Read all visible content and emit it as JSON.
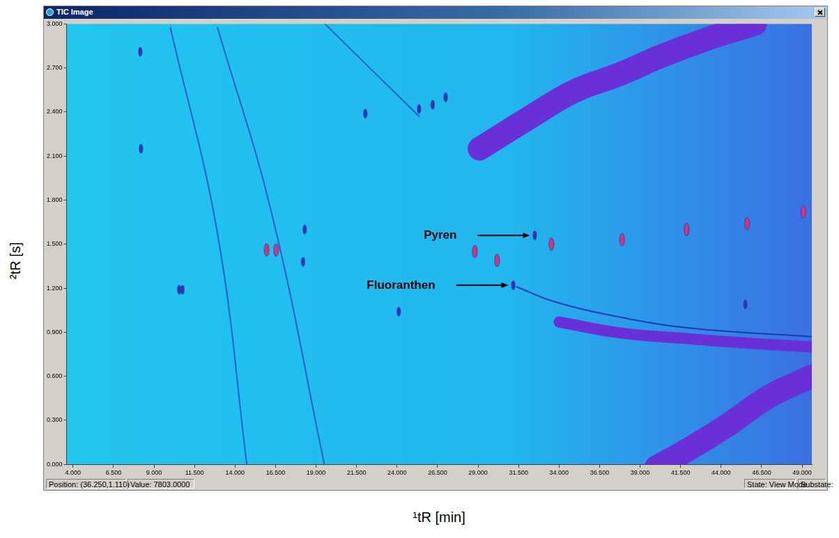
{
  "window": {
    "title": "TIC Image",
    "status": [
      "Position: (36.250,1.110)",
      "Value: 7803.0000",
      "State: View Mode",
      "Substate:"
    ]
  },
  "chart_data": {
    "type": "scatter",
    "x_label": "¹tR [min]",
    "y_label": "²tR [s]",
    "xlim": [
      3.6,
      49.6
    ],
    "xticks": [
      {
        "value": 4,
        "label": "4.000"
      },
      {
        "value": 6.5,
        "label": "6.500"
      },
      {
        "value": 9,
        "label": "9.000"
      },
      {
        "value": 11.5,
        "label": "11.500"
      },
      {
        "value": 14,
        "label": "14.000"
      },
      {
        "value": 16.5,
        "label": "16.500"
      },
      {
        "value": 19,
        "label": "19.000"
      },
      {
        "value": 21.5,
        "label": "21.500"
      },
      {
        "value": 24,
        "label": "24.000"
      },
      {
        "value": 26.5,
        "label": "26.500"
      },
      {
        "value": 29,
        "label": "29.000"
      },
      {
        "value": 31.5,
        "label": "31.500"
      },
      {
        "value": 34,
        "label": "34.000"
      },
      {
        "value": 36.5,
        "label": "36.500"
      },
      {
        "value": 39,
        "label": "39.000"
      },
      {
        "value": 41.5,
        "label": "41.500"
      },
      {
        "value": 44,
        "label": "44.000"
      },
      {
        "value": 46.5,
        "label": "46.500"
      },
      {
        "value": 49,
        "label": "49.000"
      }
    ],
    "ylim": [
      0,
      3
    ],
    "yticks": [
      {
        "value": 0,
        "label": "0.000"
      },
      {
        "value": 0.3,
        "label": "0.300"
      },
      {
        "value": 0.6,
        "label": "0.600"
      },
      {
        "value": 0.9,
        "label": "0.900"
      },
      {
        "value": 1.2,
        "label": "1.200"
      },
      {
        "value": 1.5,
        "label": "1.500"
      },
      {
        "value": 1.8,
        "label": "1.800"
      },
      {
        "value": 2.1,
        "label": "2.100"
      },
      {
        "value": 2.4,
        "label": "2.400"
      },
      {
        "value": 2.7,
        "label": "2.700"
      },
      {
        "value": 3,
        "label": "3.000"
      }
    ],
    "grid": false,
    "series": [
      {
        "type": "line",
        "color": "#6a30d8",
        "line_style": "wide",
        "values": [
          [
            29.09,
            2.15
          ],
          [
            32.0,
            2.35
          ],
          [
            34.9,
            2.54
          ],
          [
            37.8,
            2.66
          ],
          [
            40.29,
            2.78
          ],
          [
            43.2,
            2.9
          ],
          [
            46.1,
            3.0
          ]
        ]
      },
      {
        "type": "line",
        "color": "#c03c9c",
        "line_style": "medium",
        "values": [
          [
            29.6,
            2.18
          ],
          [
            32.0,
            2.35
          ],
          [
            34.9,
            2.54
          ],
          [
            37.8,
            2.66
          ],
          [
            40.29,
            2.78
          ],
          [
            43.2,
            2.9
          ],
          [
            46.1,
            3.0
          ]
        ]
      },
      {
        "type": "line",
        "color": "#40e070",
        "line_style": "narrow",
        "values": [
          [
            34.9,
            2.54
          ],
          [
            37.8,
            2.66
          ],
          [
            40.29,
            2.78
          ],
          [
            43.2,
            2.9
          ],
          [
            46.1,
            3.0
          ]
        ]
      },
      {
        "type": "line",
        "color": "#6a30d8",
        "line_style": "wide",
        "values": [
          [
            40.0,
            -0.02
          ],
          [
            41.95,
            0.1
          ],
          [
            44.44,
            0.27
          ],
          [
            46.93,
            0.46
          ],
          [
            49.6,
            0.6
          ]
        ]
      },
      {
        "type": "line",
        "color": "#c03c9c",
        "line_style": "medium",
        "values": [
          [
            40.6,
            0.02
          ],
          [
            41.95,
            0.1
          ],
          [
            44.44,
            0.27
          ],
          [
            46.93,
            0.46
          ],
          [
            49.6,
            0.6
          ]
        ]
      },
      {
        "type": "line",
        "color": "#40e070",
        "line_style": "narrow",
        "values": [
          [
            41.95,
            0.1
          ],
          [
            44.44,
            0.27
          ],
          [
            46.93,
            0.46
          ]
        ]
      },
      {
        "type": "line",
        "color": "#6a30d8",
        "line_style": "medium",
        "values": [
          [
            34.0,
            0.97
          ],
          [
            37.8,
            0.895
          ],
          [
            41.95,
            0.856
          ],
          [
            46.1,
            0.822
          ],
          [
            49.6,
            0.8
          ]
        ]
      },
      {
        "type": "line",
        "color": "#c03c9c",
        "line_style": "narrow",
        "values": [
          [
            38.5,
            0.88
          ],
          [
            41.95,
            0.856
          ],
          [
            46.1,
            0.822
          ],
          [
            49.6,
            0.8
          ]
        ]
      },
      {
        "type": "line",
        "color": "#1a3ab8",
        "line_style": "thin",
        "values": [
          [
            31.37,
            1.21
          ],
          [
            33.65,
            1.11
          ],
          [
            36.97,
            1.02
          ],
          [
            41.95,
            0.93
          ],
          [
            49.6,
            0.87
          ]
        ]
      },
      {
        "type": "line",
        "color": "#2060c8",
        "line_style": "thin",
        "values": [
          [
            10.01,
            2.975
          ],
          [
            12.92,
            1.57
          ],
          [
            14.78,
            -0.05
          ]
        ]
      },
      {
        "type": "line",
        "color": "#2060c8",
        "line_style": "thin",
        "values": [
          [
            12.92,
            2.975
          ],
          [
            16.24,
            1.72
          ],
          [
            19.55,
            -0.02
          ]
        ]
      },
      {
        "type": "line",
        "color": "#2060c8",
        "line_style": "thin",
        "values": [
          [
            19.55,
            3.0
          ],
          [
            25.36,
            2.37
          ]
        ]
      },
      {
        "type": "scatter",
        "color": "#c83a7c",
        "marker": "ellipse",
        "values": [
          [
            15.95,
            1.46
          ],
          [
            16.53,
            1.46
          ],
          [
            28.8,
            1.45
          ],
          [
            30.17,
            1.39
          ],
          [
            33.53,
            1.5
          ],
          [
            37.89,
            1.53
          ],
          [
            41.87,
            1.6
          ],
          [
            45.6,
            1.64
          ],
          [
            49.08,
            1.72
          ],
          [
            28.9,
            2.15
          ],
          [
            29.3,
            2.2
          ],
          [
            29.9,
            2.25
          ],
          [
            30.5,
            2.29
          ]
        ]
      },
      {
        "type": "scatter",
        "color": "#2838b0",
        "marker": "small_ellipse",
        "values": [
          [
            32.5,
            1.56
          ],
          [
            31.17,
            1.22
          ],
          [
            8.15,
            2.81
          ],
          [
            8.19,
            2.15
          ],
          [
            18.3,
            1.6
          ],
          [
            18.2,
            1.38
          ],
          [
            10.55,
            1.19
          ],
          [
            10.75,
            1.19
          ],
          [
            24.1,
            1.04
          ],
          [
            45.5,
            1.09
          ],
          [
            22.04,
            2.39
          ],
          [
            25.36,
            2.42
          ],
          [
            26.2,
            2.45
          ],
          [
            27.0,
            2.5
          ]
        ]
      }
    ],
    "annotations": [
      {
        "text": "Pyren",
        "x": 32.5,
        "y": 1.56
      },
      {
        "text": "Fluoranthen",
        "x": 31.17,
        "y": 1.22
      }
    ]
  }
}
